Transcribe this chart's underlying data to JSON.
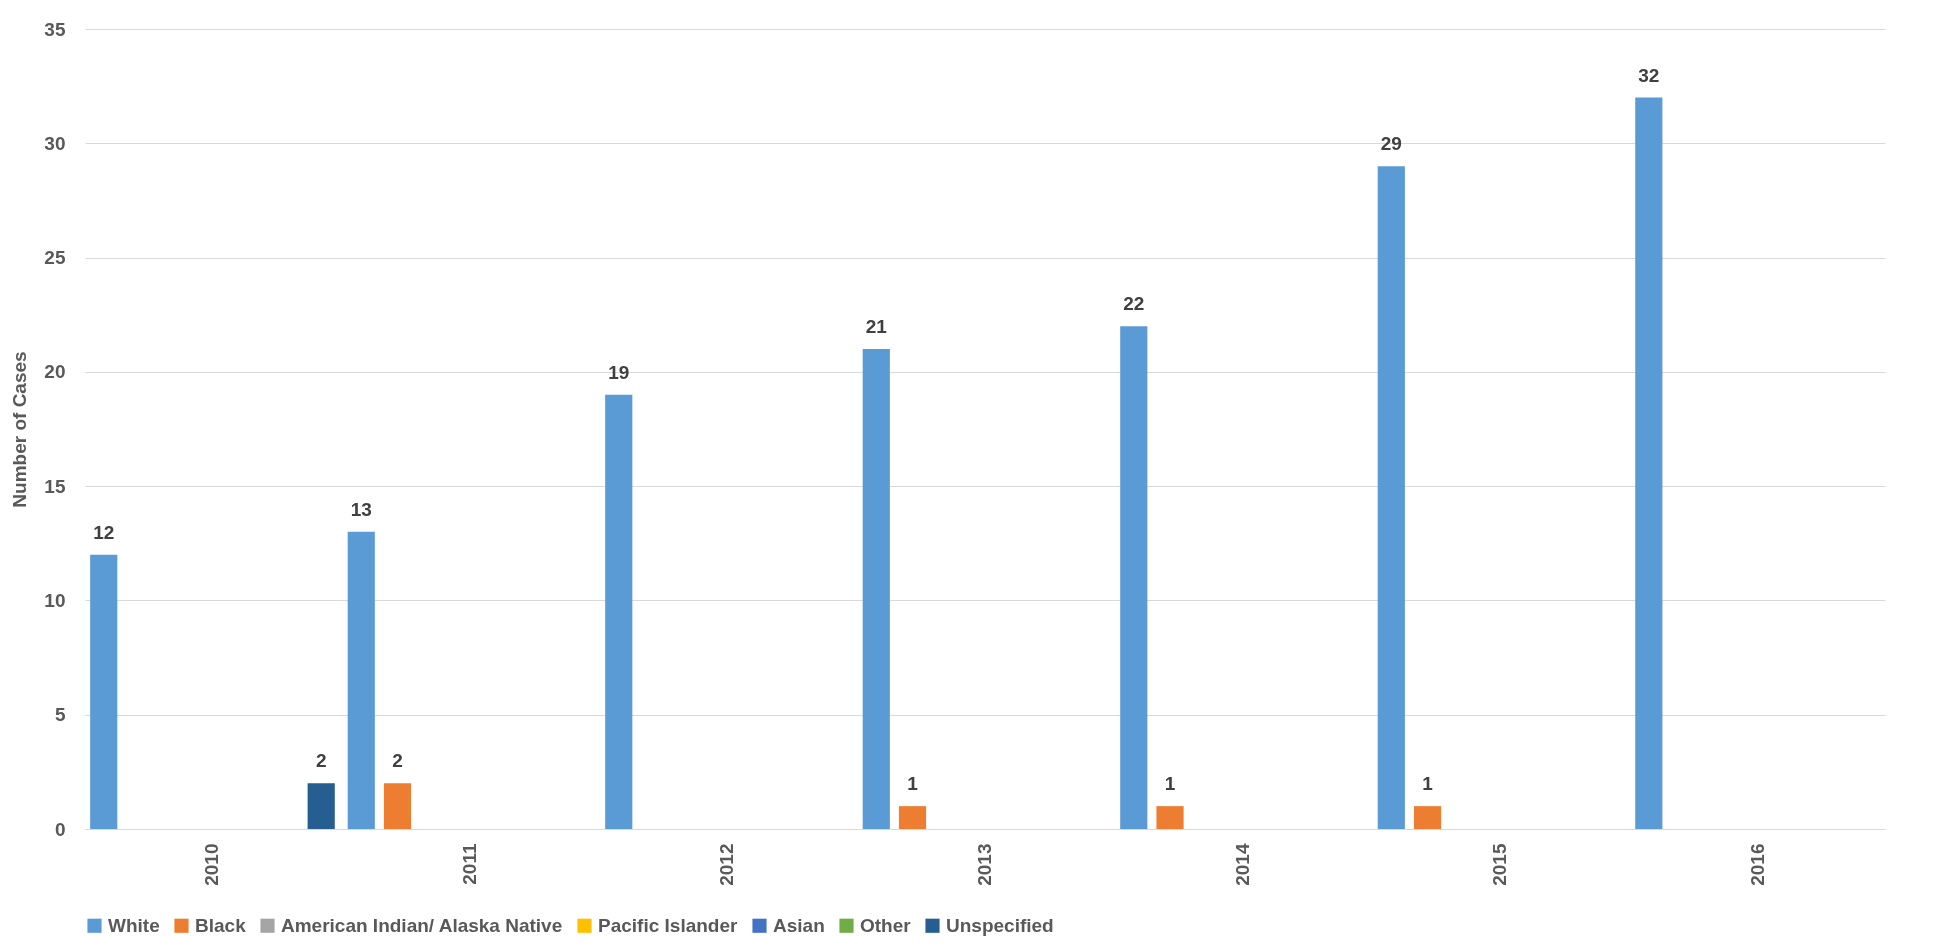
{
  "chart_data": {
    "type": "bar",
    "ylabel": "Number of Cases",
    "categories": [
      "2010",
      "2011",
      "2012",
      "2013",
      "2014",
      "2015",
      "2016"
    ],
    "series": [
      {
        "name": "White",
        "color": "#5b9bd5",
        "values": [
          12,
          13,
          19,
          21,
          22,
          29,
          32
        ],
        "value_labels": [
          "12",
          "13",
          "19",
          "21",
          "22",
          "29",
          "32"
        ]
      },
      {
        "name": "Black",
        "color": "#ed7d31",
        "values": [
          0,
          2,
          0,
          1,
          1,
          1,
          0
        ],
        "value_labels": [
          null,
          "2",
          null,
          "1",
          "1",
          "1",
          null
        ]
      },
      {
        "name": "American Indian/ Alaska Native",
        "color": "#a5a5a5",
        "values": [
          0,
          0,
          0,
          0,
          0,
          0,
          0
        ],
        "value_labels": [
          null,
          null,
          null,
          null,
          null,
          null,
          null
        ]
      },
      {
        "name": "Pacific Islander",
        "color": "#ffc000",
        "values": [
          0,
          0,
          0,
          0,
          0,
          0,
          0
        ],
        "value_labels": [
          null,
          null,
          null,
          null,
          null,
          null,
          null
        ]
      },
      {
        "name": "Asian",
        "color": "#4472c4",
        "values": [
          0,
          0,
          0,
          0,
          0,
          0,
          0
        ],
        "value_labels": [
          null,
          null,
          null,
          null,
          null,
          null,
          null
        ]
      },
      {
        "name": "Other",
        "color": "#70ad47",
        "values": [
          0,
          0,
          0,
          0,
          0,
          0,
          0
        ],
        "value_labels": [
          null,
          null,
          null,
          null,
          null,
          null,
          null
        ]
      },
      {
        "name": "Unspecified",
        "color": "#255e91",
        "values": [
          2,
          0,
          0,
          0,
          0,
          0,
          0
        ],
        "value_labels": [
          "2",
          null,
          null,
          null,
          null,
          null,
          null
        ]
      }
    ],
    "ylim": [
      0,
      35
    ],
    "yticks": [
      0,
      5,
      10,
      15,
      20,
      25,
      30,
      35
    ],
    "grid": "y",
    "legend": "bottom"
  }
}
